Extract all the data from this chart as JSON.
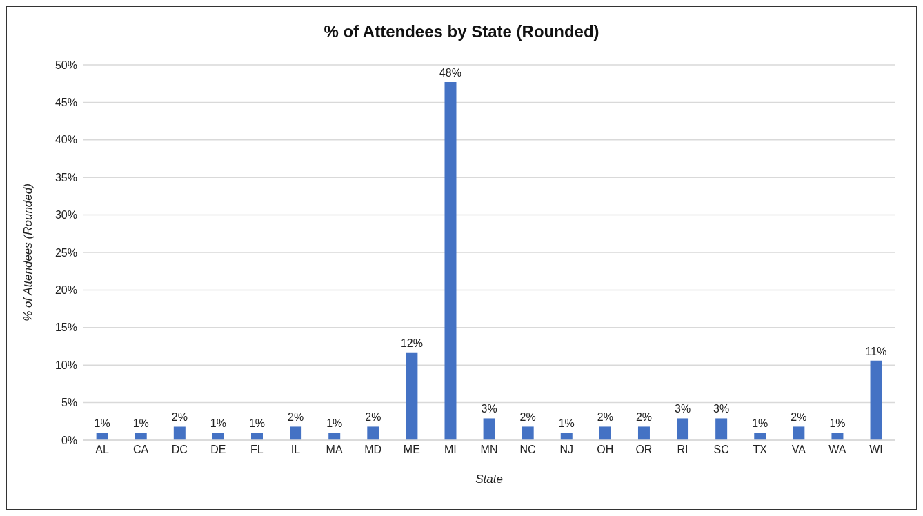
{
  "chart_data": {
    "type": "bar",
    "title": "% of Attendees by State (Rounded)",
    "xlabel": "State",
    "ylabel": "% of Attendees (Rounded)",
    "categories": [
      "AL",
      "CA",
      "DC",
      "DE",
      "FL",
      "IL",
      "MA",
      "MD",
      "ME",
      "MI",
      "MN",
      "NC",
      "NJ",
      "OH",
      "OR",
      "RI",
      "SC",
      "TX",
      "VA",
      "WA",
      "WI"
    ],
    "values": [
      1.0,
      1.0,
      1.8,
      1.0,
      1.0,
      1.8,
      1.0,
      1.8,
      11.7,
      47.7,
      2.9,
      1.8,
      1.0,
      1.8,
      1.8,
      2.9,
      2.9,
      1.0,
      1.8,
      1.0,
      10.6
    ],
    "value_labels": [
      "1%",
      "1%",
      "2%",
      "1%",
      "1%",
      "2%",
      "1%",
      "2%",
      "12%",
      "48%",
      "3%",
      "2%",
      "1%",
      "2%",
      "2%",
      "3%",
      "3%",
      "1%",
      "2%",
      "1%",
      "11%"
    ],
    "color": "#4472c4",
    "ylim": [
      0,
      50
    ],
    "yticks": [
      {
        "value": 0,
        "label": "0%"
      },
      {
        "value": 5,
        "label": "5%"
      },
      {
        "value": 10,
        "label": "10%"
      },
      {
        "value": 15,
        "label": "15%"
      },
      {
        "value": 20,
        "label": "20%"
      },
      {
        "value": 25,
        "label": "25%"
      },
      {
        "value": 30,
        "label": "30%"
      },
      {
        "value": 35,
        "label": "35%"
      },
      {
        "value": 40,
        "label": "40%"
      },
      {
        "value": 45,
        "label": "45%"
      },
      {
        "value": 50,
        "label": "50%"
      }
    ],
    "grid": "y",
    "legend": false
  }
}
